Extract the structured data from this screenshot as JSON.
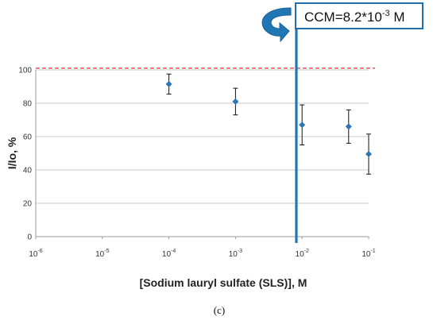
{
  "chart_data": {
    "type": "scatter",
    "xscale": "log",
    "xlabel": "[Sodium lauryl sulfate (SLS)], M",
    "ylabel": "I/Io, %",
    "xlim": [
      1e-06,
      0.1
    ],
    "ylim": [
      0,
      100
    ],
    "y_ticks": [
      "0",
      "20",
      "40",
      "60",
      "80",
      "100"
    ],
    "x_ticks": [
      {
        "value": 1e-06,
        "base": "10",
        "exp": "-6"
      },
      {
        "value": 1e-05,
        "base": "10",
        "exp": "-5"
      },
      {
        "value": 0.0001,
        "base": "10",
        "exp": "-4"
      },
      {
        "value": 0.001,
        "base": "10",
        "exp": "-3"
      },
      {
        "value": 0.01,
        "base": "10",
        "exp": "-2"
      },
      {
        "value": 0.1,
        "base": "10",
        "exp": "-1"
      }
    ],
    "grid": "horizontal",
    "points": [
      {
        "x": 0.0001,
        "y": 91.5,
        "err": 6
      },
      {
        "x": 0.001,
        "y": 81,
        "err": 8
      },
      {
        "x": 0.01,
        "y": 67,
        "err": 12
      },
      {
        "x": 0.05,
        "y": 66,
        "err": 10
      },
      {
        "x": 0.1,
        "y": 49.5,
        "err": 12
      }
    ],
    "reference_line": {
      "y": 101,
      "style": "dashed",
      "color": "#e03030"
    },
    "ccm_line": {
      "x": 0.0082,
      "color": "#1f77b4"
    },
    "annotation": {
      "prefix": "CCM=8.2*10",
      "exp": "-3",
      "suffix": " M"
    },
    "marker_color": "#2e75b6",
    "caption": "(c)"
  }
}
